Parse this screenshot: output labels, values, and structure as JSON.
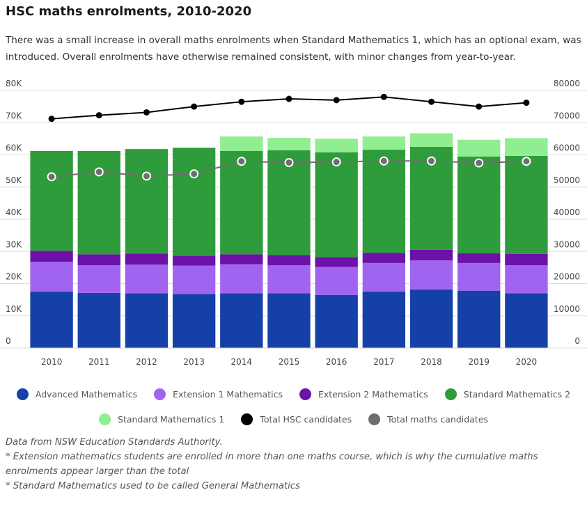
{
  "title": "HSC maths enrolments, 2010-2020",
  "subtitle": "There was a small increase in overall maths enrolments when Standard Mathematics 1, which has an optional exam, was introduced. Overall enrolments have otherwise remained consistent, with minor changes from year-to-year.",
  "chart_data": {
    "type": "bar",
    "stacked": true,
    "categories": [
      "2010",
      "2011",
      "2012",
      "2013",
      "2014",
      "2015",
      "2016",
      "2017",
      "2018",
      "2019",
      "2020"
    ],
    "series": [
      {
        "name": "Advanced Mathematics",
        "color": "#1540a8",
        "values": [
          17500,
          17100,
          17000,
          16800,
          17000,
          17000,
          16500,
          17500,
          18200,
          17800,
          17000
        ]
      },
      {
        "name": "Extension 1 Mathematics",
        "color": "#a064f0",
        "values": [
          9300,
          8600,
          8900,
          8800,
          9000,
          8700,
          8700,
          8900,
          9000,
          8600,
          8700
        ]
      },
      {
        "name": "Extension 2 Mathematics",
        "color": "#6c12a8",
        "values": [
          3400,
          3400,
          3400,
          3100,
          3100,
          3200,
          3000,
          3200,
          3300,
          3000,
          3500
        ]
      },
      {
        "name": "Standard Mathematics 2",
        "color": "#2f9c3c",
        "values": [
          31000,
          32100,
          32500,
          33500,
          32100,
          32500,
          32600,
          32000,
          32000,
          30100,
          30500
        ]
      },
      {
        "name": "Standard Mathematics 1",
        "color": "#90ee90",
        "values": [
          0,
          0,
          0,
          0,
          4500,
          3900,
          4200,
          4100,
          4200,
          5200,
          5500
        ]
      }
    ],
    "lines": [
      {
        "name": "Total HSC candidates",
        "color": "#000000",
        "values": [
          71200,
          72300,
          73200,
          75000,
          76500,
          77400,
          77000,
          78000,
          76500,
          75000,
          76200
        ]
      },
      {
        "name": "Total maths candidates",
        "color": "#6e6e6e",
        "values": [
          53200,
          54700,
          53400,
          54100,
          58000,
          57600,
          57800,
          58100,
          58100,
          57500,
          58000
        ]
      }
    ],
    "y_left": {
      "range": [
        0,
        80000
      ],
      "ticks": [
        0,
        10000,
        20000,
        30000,
        40000,
        50000,
        60000,
        70000,
        80000
      ],
      "tick_labels": [
        "0",
        "10K",
        "20K",
        "30K",
        "40K",
        "50K",
        "60K",
        "70K",
        "80K"
      ]
    },
    "y_right": {
      "range": [
        0,
        80000
      ],
      "ticks": [
        0,
        10000,
        20000,
        30000,
        40000,
        50000,
        60000,
        70000,
        80000
      ],
      "tick_labels": [
        "0",
        "10000",
        "20000",
        "30000",
        "40000",
        "50000",
        "60000",
        "70000",
        "80000"
      ]
    },
    "grid": true,
    "legend": "bottom"
  },
  "legend_rows": [
    [
      "Advanced Mathematics",
      "Extension 1 Mathematics",
      "Extension 2 Mathematics",
      "Standard Mathematics 2"
    ],
    [
      "Standard Mathematics 1",
      "Total HSC candidates",
      "Total maths candidates"
    ]
  ],
  "notes": [
    "Data from NSW Education Standards Authority.",
    "* Extension mathematics students are enrolled in more than one maths course, which is why the cumulative maths enrolments appear larger than the total",
    "* Standard Mathematics used to be called General Mathematics"
  ]
}
